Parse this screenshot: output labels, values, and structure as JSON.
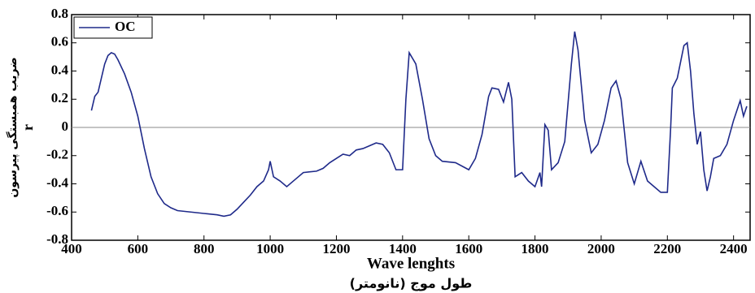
{
  "chart_data": {
    "type": "line",
    "xlabel": "Wave lenghts",
    "xlabel_secondary": "طول موج (نانومتر)",
    "ylabel": "ضریب همبستگی پیرسون",
    "ylabel_secondary": "r",
    "xlim": [
      400,
      2450
    ],
    "ylim": [
      -0.8,
      0.8
    ],
    "xticks": [
      400,
      600,
      800,
      1000,
      1200,
      1400,
      1600,
      1800,
      2000,
      2200,
      2400
    ],
    "yticks": [
      -0.8,
      -0.6,
      -0.4,
      -0.2,
      0,
      0.2,
      0.4,
      0.6,
      0.8
    ],
    "reference_line": 0,
    "legend": "upper left",
    "x": [
      460,
      470,
      480,
      490,
      500,
      510,
      520,
      530,
      540,
      560,
      580,
      600,
      620,
      640,
      660,
      680,
      700,
      720,
      760,
      800,
      840,
      860,
      880,
      900,
      920,
      940,
      960,
      980,
      995,
      1000,
      1010,
      1030,
      1050,
      1080,
      1100,
      1140,
      1160,
      1180,
      1200,
      1220,
      1240,
      1260,
      1280,
      1300,
      1320,
      1340,
      1360,
      1380,
      1400,
      1410,
      1420,
      1440,
      1460,
      1480,
      1500,
      1520,
      1560,
      1600,
      1620,
      1640,
      1660,
      1670,
      1690,
      1705,
      1720,
      1730,
      1740,
      1760,
      1780,
      1800,
      1815,
      1820,
      1830,
      1840,
      1850,
      1870,
      1890,
      1910,
      1920,
      1930,
      1950,
      1970,
      1990,
      2010,
      2030,
      2045,
      2060,
      2080,
      2100,
      2120,
      2140,
      2160,
      2180,
      2200,
      2210,
      2215,
      2230,
      2250,
      2260,
      2270,
      2280,
      2290,
      2300,
      2310,
      2320,
      2330,
      2340,
      2360,
      2380,
      2400,
      2420,
      2430,
      2440
    ],
    "series": [
      {
        "name": "OC",
        "color": "#1f2a8a",
        "values": [
          0.12,
          0.22,
          0.25,
          0.35,
          0.45,
          0.51,
          0.53,
          0.52,
          0.48,
          0.38,
          0.25,
          0.08,
          -0.15,
          -0.35,
          -0.47,
          -0.54,
          -0.57,
          -0.59,
          -0.6,
          -0.61,
          -0.62,
          -0.63,
          -0.62,
          -0.58,
          -0.53,
          -0.48,
          -0.42,
          -0.38,
          -0.3,
          -0.24,
          -0.35,
          -0.38,
          -0.42,
          -0.36,
          -0.32,
          -0.31,
          -0.29,
          -0.25,
          -0.22,
          -0.19,
          -0.2,
          -0.16,
          -0.15,
          -0.13,
          -0.11,
          -0.12,
          -0.18,
          -0.3,
          -0.3,
          0.2,
          0.53,
          0.45,
          0.2,
          -0.08,
          -0.2,
          -0.24,
          -0.25,
          -0.3,
          -0.22,
          -0.05,
          0.22,
          0.28,
          0.27,
          0.18,
          0.32,
          0.2,
          -0.35,
          -0.32,
          -0.38,
          -0.42,
          -0.32,
          -0.42,
          0.02,
          -0.02,
          -0.3,
          -0.25,
          -0.1,
          0.45,
          0.68,
          0.55,
          0.05,
          -0.18,
          -0.12,
          0.05,
          0.28,
          0.33,
          0.2,
          -0.25,
          -0.4,
          -0.24,
          -0.38,
          -0.42,
          -0.46,
          -0.46,
          0.0,
          0.28,
          0.35,
          0.58,
          0.6,
          0.4,
          0.1,
          -0.12,
          -0.03,
          -0.3,
          -0.45,
          -0.35,
          -0.22,
          -0.2,
          -0.12,
          0.05,
          0.19,
          0.08,
          0.15
        ]
      }
    ]
  }
}
